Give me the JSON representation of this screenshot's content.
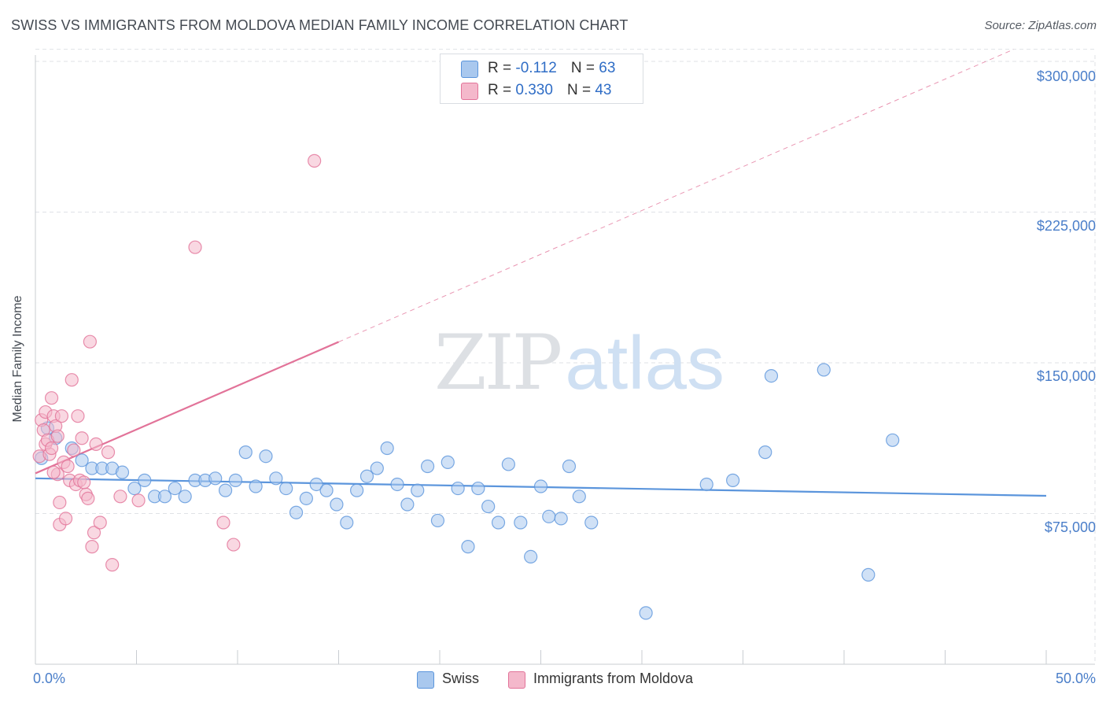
{
  "header": {
    "title": "SWISS VS IMMIGRANTS FROM MOLDOVA MEDIAN FAMILY INCOME CORRELATION CHART",
    "source": "Source: ZipAtlas.com"
  },
  "legend_top": {
    "rows": [
      {
        "r_label": "R =",
        "r_value": "-0.112",
        "n_label": "N =",
        "n_value": "63"
      },
      {
        "r_label": "R =",
        "r_value": "0.330",
        "n_label": "N =",
        "n_value": "43"
      }
    ]
  },
  "legend_bottom": {
    "items": [
      "Swiss",
      "Immigrants from Moldova"
    ]
  },
  "watermark": {
    "zip": "ZIP",
    "atlas": "atlas"
  },
  "colors": {
    "swiss": "#5b95dc",
    "swiss_fill": "#a9c8ee",
    "moldova": "#e27399",
    "moldova_fill": "#f4b8cb",
    "tick_text": "#4a7ec9"
  },
  "chart_data": {
    "type": "scatter",
    "title": "SWISS VS IMMIGRANTS FROM MOLDOVA MEDIAN FAMILY INCOME CORRELATION CHART",
    "xlabel": "",
    "ylabel": "Median Family Income",
    "xlim": [
      0,
      50
    ],
    "ylim": [
      0,
      315000
    ],
    "x_tick_labels": [
      "0.0%",
      "50.0%"
    ],
    "y_tick_labels": [
      "$75,000",
      "$150,000",
      "$225,000",
      "$300,000"
    ],
    "y_ticks": [
      75000,
      150000,
      225000,
      300000
    ],
    "grid": true,
    "legend_position": "top-center",
    "series": [
      {
        "name": "Swiss",
        "points": [
          [
            0.3,
            102500
          ],
          [
            0.6,
            117500
          ],
          [
            1.0,
            112500
          ],
          [
            1.8,
            107500
          ],
          [
            2.3,
            101500
          ],
          [
            2.8,
            97500
          ],
          [
            3.3,
            97500
          ],
          [
            3.8,
            97500
          ],
          [
            4.3,
            95500
          ],
          [
            4.9,
            87500
          ],
          [
            5.4,
            91500
          ],
          [
            5.9,
            83500
          ],
          [
            6.4,
            83500
          ],
          [
            6.9,
            87500
          ],
          [
            7.4,
            83500
          ],
          [
            7.9,
            91500
          ],
          [
            8.4,
            91500
          ],
          [
            8.9,
            92500
          ],
          [
            9.4,
            86500
          ],
          [
            9.9,
            91500
          ],
          [
            10.4,
            105500
          ],
          [
            10.9,
            88500
          ],
          [
            11.4,
            103500
          ],
          [
            11.9,
            92500
          ],
          [
            12.4,
            87500
          ],
          [
            12.9,
            75500
          ],
          [
            13.4,
            82500
          ],
          [
            13.9,
            89500
          ],
          [
            14.4,
            86500
          ],
          [
            14.9,
            79500
          ],
          [
            15.4,
            70500
          ],
          [
            15.9,
            86500
          ],
          [
            16.4,
            93500
          ],
          [
            16.9,
            97500
          ],
          [
            17.4,
            107500
          ],
          [
            17.9,
            89500
          ],
          [
            18.4,
            79500
          ],
          [
            18.9,
            86500
          ],
          [
            19.4,
            98500
          ],
          [
            19.9,
            71500
          ],
          [
            20.4,
            100500
          ],
          [
            20.9,
            87500
          ],
          [
            21.4,
            58500
          ],
          [
            21.9,
            87500
          ],
          [
            22.4,
            78500
          ],
          [
            22.9,
            70500
          ],
          [
            23.4,
            99500
          ],
          [
            24.0,
            70500
          ],
          [
            24.5,
            53500
          ],
          [
            25.0,
            88500
          ],
          [
            25.4,
            73500
          ],
          [
            26.0,
            72500
          ],
          [
            26.4,
            98500
          ],
          [
            26.9,
            83500
          ],
          [
            27.5,
            70500
          ],
          [
            30.2,
            25500
          ],
          [
            33.2,
            89500
          ],
          [
            34.5,
            91500
          ],
          [
            36.1,
            105500
          ],
          [
            36.4,
            143500
          ],
          [
            39.0,
            146500
          ],
          [
            41.2,
            44500
          ],
          [
            42.4,
            111500
          ]
        ]
      },
      {
        "name": "Immigrants from Moldova",
        "points": [
          [
            0.2,
            103500
          ],
          [
            0.3,
            121500
          ],
          [
            0.4,
            116500
          ],
          [
            0.5,
            109500
          ],
          [
            0.5,
            125500
          ],
          [
            0.6,
            111500
          ],
          [
            0.7,
            104500
          ],
          [
            0.8,
            107500
          ],
          [
            0.8,
            132500
          ],
          [
            0.9,
            123500
          ],
          [
            1.0,
            118500
          ],
          [
            1.1,
            94500
          ],
          [
            1.1,
            113500
          ],
          [
            1.2,
            69500
          ],
          [
            1.3,
            123500
          ],
          [
            1.4,
            100500
          ],
          [
            1.5,
            72500
          ],
          [
            1.6,
            98500
          ],
          [
            1.7,
            91500
          ],
          [
            1.8,
            141500
          ],
          [
            1.9,
            106500
          ],
          [
            2.0,
            89500
          ],
          [
            2.1,
            123500
          ],
          [
            2.2,
            91500
          ],
          [
            2.3,
            112500
          ],
          [
            2.5,
            84500
          ],
          [
            2.6,
            82500
          ],
          [
            2.7,
            160500
          ],
          [
            2.8,
            58500
          ],
          [
            2.9,
            65500
          ],
          [
            3.0,
            109500
          ],
          [
            3.2,
            70500
          ],
          [
            3.6,
            105500
          ],
          [
            3.8,
            49500
          ],
          [
            4.2,
            83500
          ],
          [
            5.1,
            81500
          ],
          [
            7.9,
            207500
          ],
          [
            9.3,
            70500
          ],
          [
            9.8,
            59500
          ],
          [
            13.8,
            250500
          ],
          [
            1.2,
            80500
          ],
          [
            2.4,
            90500
          ],
          [
            0.9,
            95500
          ]
        ]
      }
    ],
    "trend_lines": [
      {
        "series": "Swiss",
        "x": [
          0,
          50
        ],
        "y": [
          92500,
          83800
        ]
      },
      {
        "series": "Immigrants from Moldova",
        "solid_x": [
          0,
          15
        ],
        "dashed_x": [
          15,
          50
        ],
        "intercept": 95000,
        "slope_per_pct": 4360
      }
    ]
  }
}
